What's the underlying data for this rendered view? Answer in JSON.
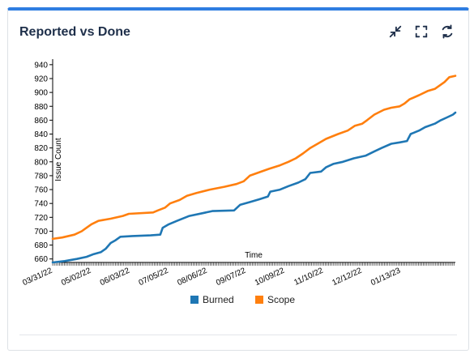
{
  "card": {
    "title": "Reported vs Done",
    "icons": [
      "collapse-icon",
      "fullscreen-icon",
      "refresh-icon"
    ]
  },
  "chart_data": {
    "type": "line",
    "title": "",
    "xlabel": "Time",
    "ylabel": "Issue Count",
    "x_tick_labels": [
      "03/31/22",
      "05/02/22",
      "06/03/22",
      "07/05/22",
      "08/06/22",
      "09/07/22",
      "10/09/22",
      "11/10/22",
      "12/12/22",
      "01/13/23"
    ],
    "y_ticks": [
      660,
      680,
      700,
      720,
      740,
      760,
      780,
      800,
      820,
      840,
      860,
      880,
      900,
      920,
      940
    ],
    "ylim": [
      655,
      948
    ],
    "xlim": [
      "03/31/22",
      "02/27/23"
    ],
    "grid": false,
    "legend_position": "bottom",
    "series": [
      {
        "name": "Burned",
        "color": "#1f77b4",
        "points": [
          [
            "03/31/22",
            655
          ],
          [
            "04/10/22",
            657
          ],
          [
            "04/20/22",
            660
          ],
          [
            "04/28/22",
            663
          ],
          [
            "05/04/22",
            667
          ],
          [
            "05/10/22",
            670
          ],
          [
            "05/14/22",
            675
          ],
          [
            "05/18/22",
            683
          ],
          [
            "05/22/22",
            687
          ],
          [
            "05/26/22",
            692
          ],
          [
            "06/05/22",
            693
          ],
          [
            "06/20/22",
            694
          ],
          [
            "06/28/22",
            695
          ],
          [
            "06/30/22",
            705
          ],
          [
            "07/05/22",
            710
          ],
          [
            "07/12/22",
            715
          ],
          [
            "07/22/22",
            722
          ],
          [
            "08/02/22",
            726
          ],
          [
            "08/10/22",
            729
          ],
          [
            "08/28/22",
            730
          ],
          [
            "09/02/22",
            738
          ],
          [
            "09/10/22",
            742
          ],
          [
            "09/18/22",
            746
          ],
          [
            "09/25/22",
            750
          ],
          [
            "09/27/22",
            757
          ],
          [
            "10/05/22",
            760
          ],
          [
            "10/12/22",
            765
          ],
          [
            "10/20/22",
            770
          ],
          [
            "10/26/22",
            775
          ],
          [
            "10/30/22",
            784
          ],
          [
            "11/08/22",
            786
          ],
          [
            "11/12/22",
            792
          ],
          [
            "11/18/22",
            797
          ],
          [
            "11/26/22",
            800
          ],
          [
            "12/05/22",
            805
          ],
          [
            "12/15/22",
            809
          ],
          [
            "12/22/22",
            815
          ],
          [
            "12/28/22",
            820
          ],
          [
            "01/05/23",
            826
          ],
          [
            "01/12/23",
            828
          ],
          [
            "01/18/23",
            830
          ],
          [
            "01/21/23",
            840
          ],
          [
            "01/28/23",
            845
          ],
          [
            "02/02/23",
            850
          ],
          [
            "02/10/23",
            855
          ],
          [
            "02/15/23",
            860
          ],
          [
            "02/20/23",
            864
          ],
          [
            "02/25/23",
            868
          ],
          [
            "02/27/23",
            871
          ]
        ]
      },
      {
        "name": "Scope",
        "color": "#ff7f0e",
        "points": [
          [
            "03/31/22",
            689
          ],
          [
            "04/08/22",
            691
          ],
          [
            "04/18/22",
            695
          ],
          [
            "04/24/22",
            700
          ],
          [
            "04/28/22",
            705
          ],
          [
            "05/02/22",
            710
          ],
          [
            "05/08/22",
            715
          ],
          [
            "05/18/22",
            718
          ],
          [
            "05/28/22",
            722
          ],
          [
            "06/02/22",
            725
          ],
          [
            "06/22/22",
            727
          ],
          [
            "06/26/22",
            730
          ],
          [
            "07/02/22",
            734
          ],
          [
            "07/06/22",
            740
          ],
          [
            "07/14/22",
            745
          ],
          [
            "07/20/22",
            751
          ],
          [
            "07/28/22",
            755
          ],
          [
            "08/08/22",
            760
          ],
          [
            "08/20/22",
            764
          ],
          [
            "08/30/22",
            768
          ],
          [
            "09/05/22",
            772
          ],
          [
            "09/10/22",
            780
          ],
          [
            "09/18/22",
            785
          ],
          [
            "09/26/22",
            790
          ],
          [
            "10/05/22",
            795
          ],
          [
            "10/12/22",
            800
          ],
          [
            "10/18/22",
            805
          ],
          [
            "10/24/22",
            812
          ],
          [
            "10/30/22",
            820
          ],
          [
            "11/06/22",
            827
          ],
          [
            "11/12/22",
            833
          ],
          [
            "11/22/22",
            840
          ],
          [
            "11/30/22",
            845
          ],
          [
            "12/06/22",
            852
          ],
          [
            "12/12/22",
            855
          ],
          [
            "12/16/22",
            860
          ],
          [
            "12/22/22",
            868
          ],
          [
            "12/30/22",
            875
          ],
          [
            "01/05/23",
            878
          ],
          [
            "01/12/23",
            880
          ],
          [
            "01/16/23",
            884
          ],
          [
            "01/20/23",
            890
          ],
          [
            "01/28/23",
            896
          ],
          [
            "02/04/23",
            902
          ],
          [
            "02/10/23",
            905
          ],
          [
            "02/14/23",
            910
          ],
          [
            "02/18/23",
            915
          ],
          [
            "02/22/23",
            922
          ],
          [
            "02/27/23",
            924
          ]
        ]
      }
    ]
  }
}
